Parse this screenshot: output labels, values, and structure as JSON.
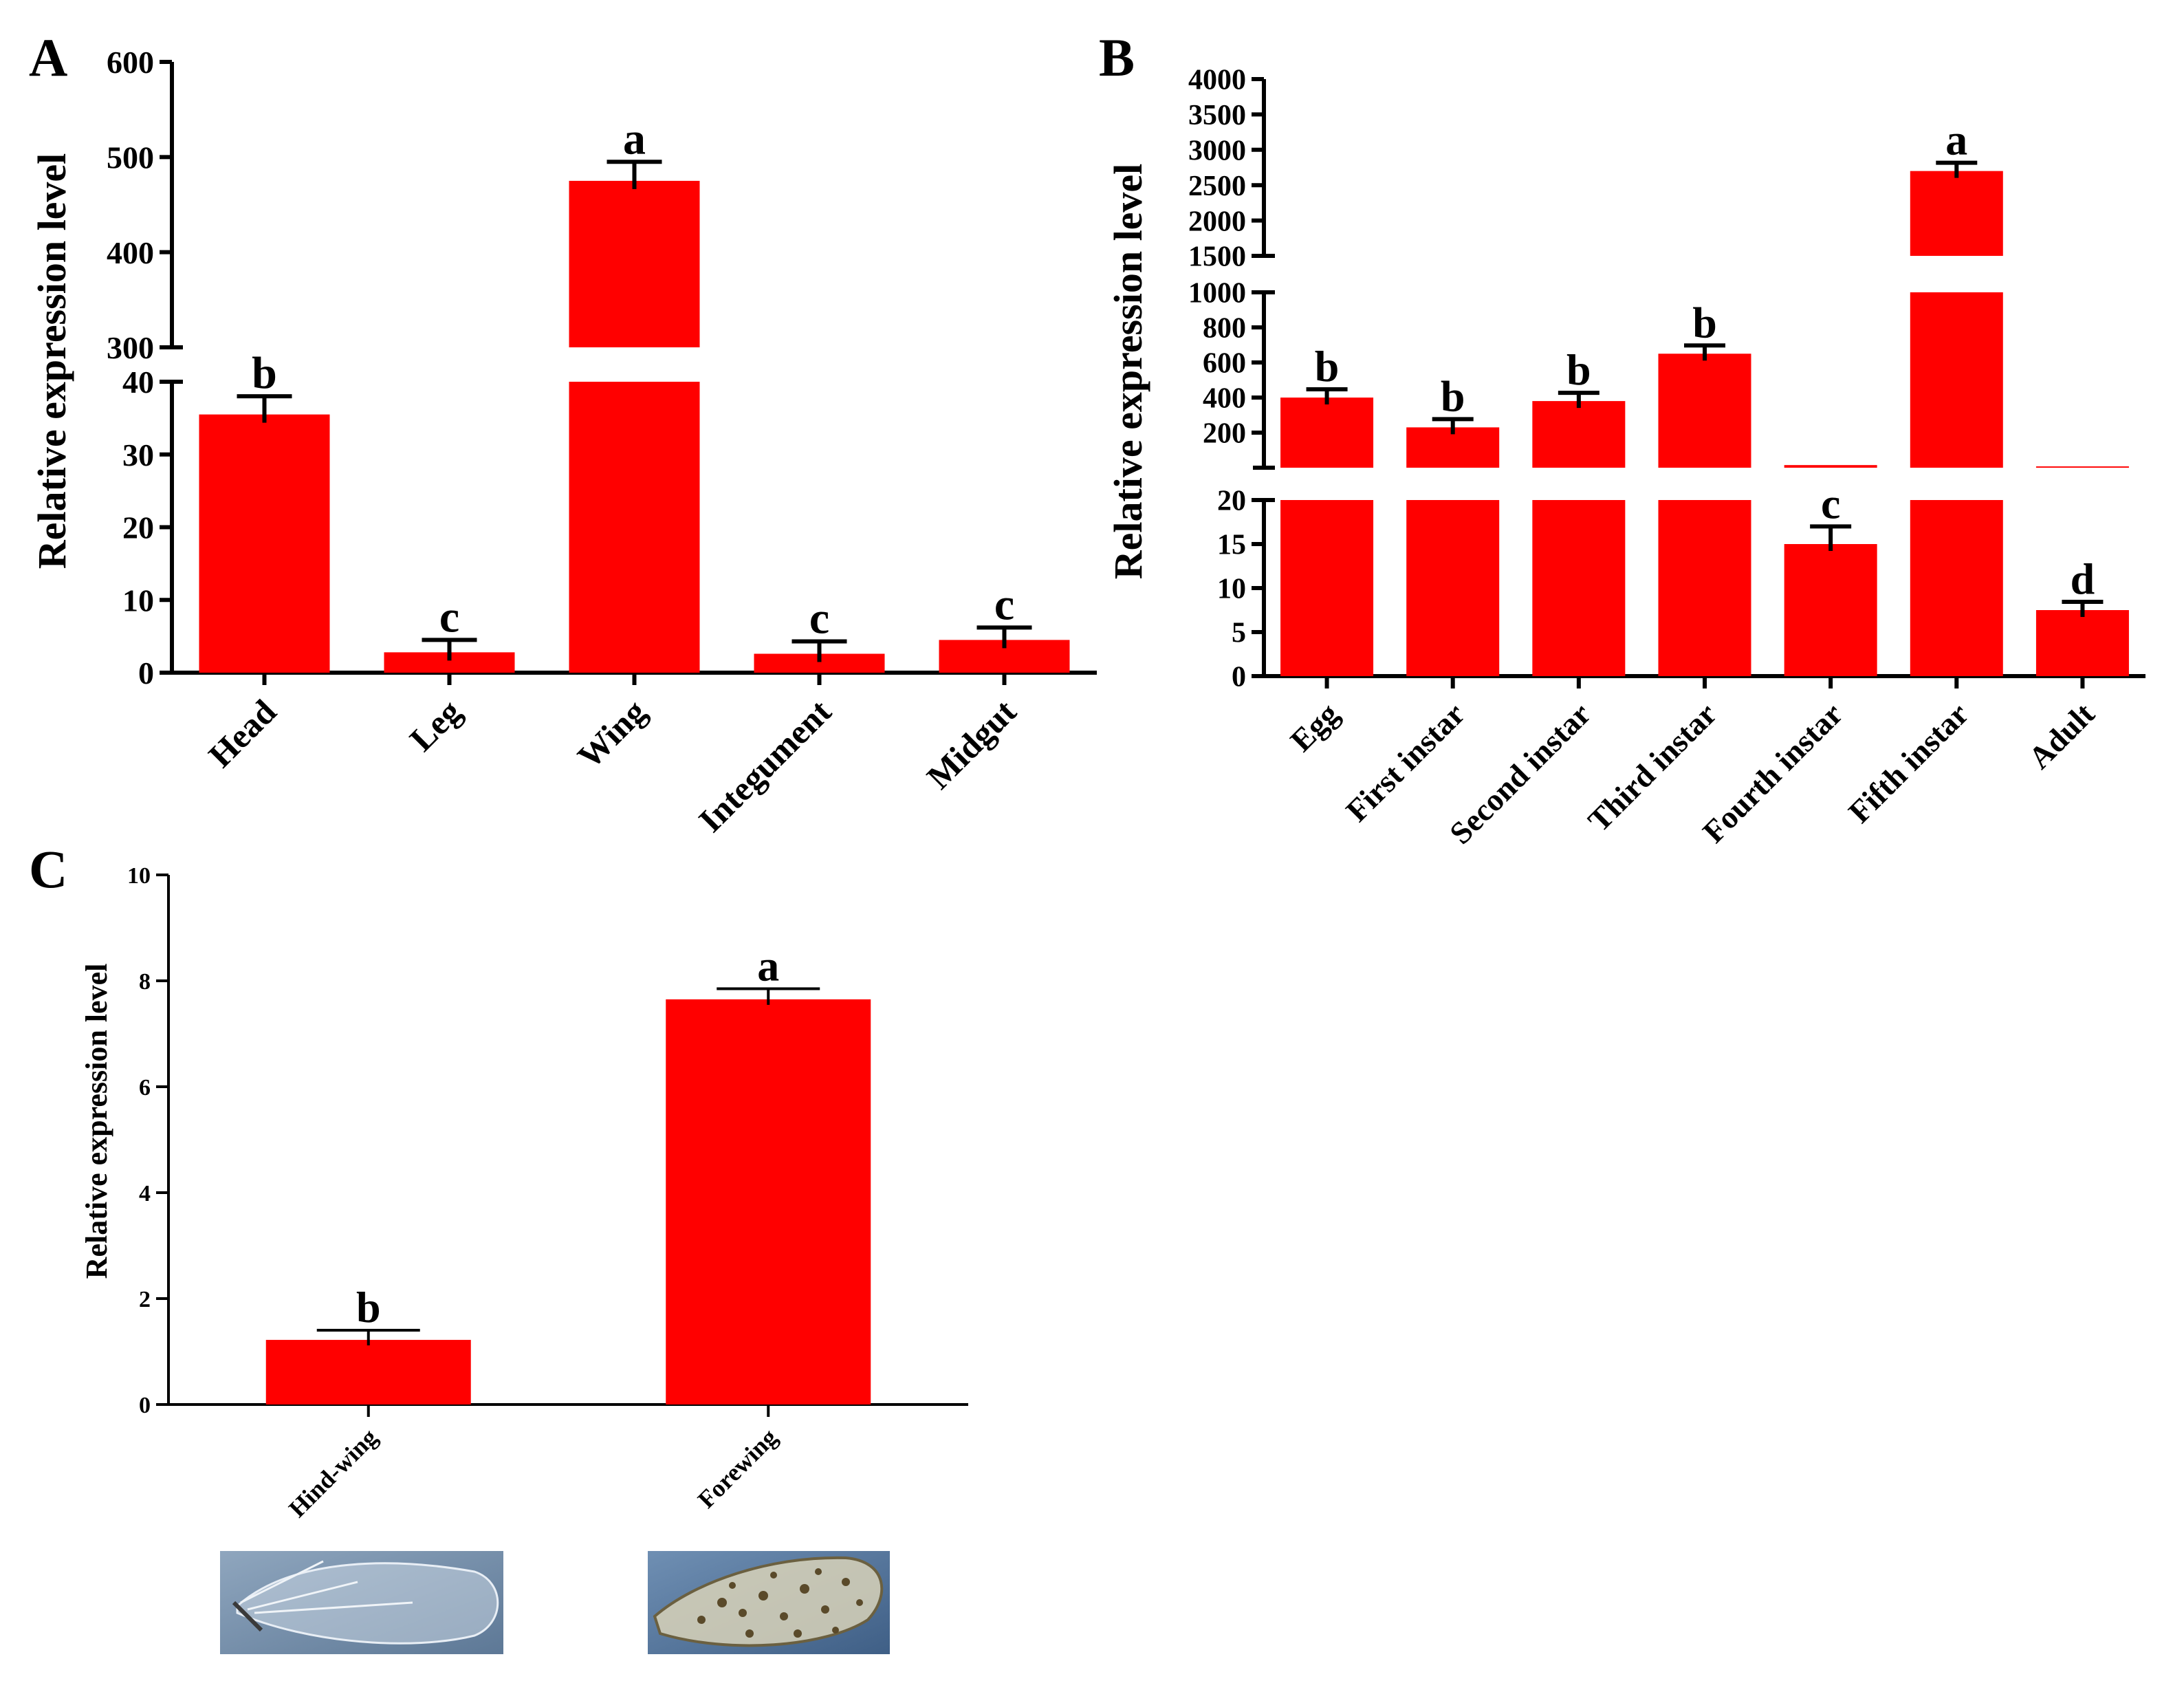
{
  "colors": {
    "bar": "#ff0000",
    "axis": "#000000",
    "background": "#ffffff"
  },
  "chart_data": [
    {
      "panel": "A",
      "type": "bar",
      "ylabel": "Relative expression level",
      "categories": [
        "Head",
        "Leg",
        "Wing",
        "Integument",
        "Midgut"
      ],
      "values": [
        35.5,
        2.8,
        475,
        2.6,
        4.5
      ],
      "errors": [
        2.5,
        0.3,
        20,
        0.2,
        0.5
      ],
      "letters": [
        "b",
        "c",
        "a",
        "c",
        "c"
      ],
      "axis_break": {
        "lower": [
          0,
          40
        ],
        "upper": [
          300,
          600
        ]
      },
      "lower_ticks": [
        "0",
        "10",
        "20",
        "30",
        "40"
      ],
      "upper_ticks": [
        "300",
        "400",
        "500",
        "600"
      ]
    },
    {
      "panel": "B",
      "type": "bar",
      "ylabel": "Relative expression level",
      "categories": [
        "Egg",
        "First instar",
        "Second instar",
        "Third instar",
        "Fourth instar",
        "Fifth instar",
        "Adult"
      ],
      "values": [
        400,
        230,
        380,
        650,
        15,
        2700,
        7.5
      ],
      "errors": [
        20,
        15,
        25,
        12,
        2,
        60,
        0.8
      ],
      "letters": [
        "b",
        "b",
        "b",
        "b",
        "c",
        "a",
        "d"
      ],
      "axis_break": {
        "lower": [
          0,
          20
        ],
        "middle": [
          0,
          1000
        ],
        "upper": [
          1500,
          4000
        ]
      },
      "lower_ticks": [
        "0",
        "5",
        "10",
        "15",
        "20"
      ],
      "middle_ticks": [
        "200",
        "400",
        "600",
        "800",
        "1000"
      ],
      "upper_ticks": [
        "1500",
        "2000",
        "2500",
        "3000",
        "3500",
        "4000"
      ]
    },
    {
      "panel": "C",
      "type": "bar",
      "ylabel": "Relative expression level",
      "categories": [
        "Hind-wing",
        "Forewing"
      ],
      "values": [
        1.22,
        7.65
      ],
      "errors": [
        0.08,
        0.2
      ],
      "letters": [
        "b",
        "a"
      ],
      "ylim": [
        0,
        10
      ],
      "ticks": [
        "0",
        "2",
        "4",
        "6",
        "8",
        "10"
      ],
      "photos": [
        "hind-wing photo",
        "forewing photo"
      ]
    }
  ]
}
